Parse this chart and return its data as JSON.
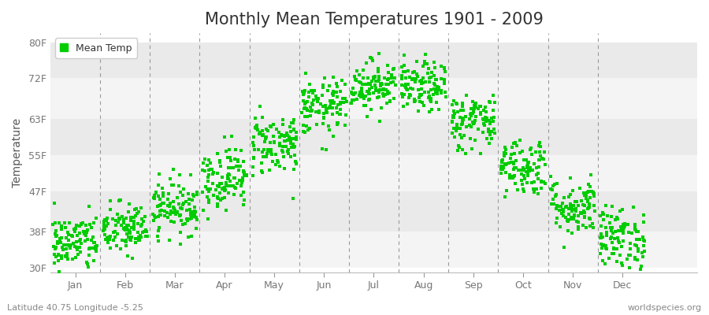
{
  "title": "Monthly Mean Temperatures 1901 - 2009",
  "ylabel": "Temperature",
  "xlabel_bottom_left": "Latitude 40.75 Longitude -5.25",
  "xlabel_bottom_right": "worldspecies.org",
  "legend_label": "Mean Temp",
  "dot_color": "#00cc00",
  "background_color": "#ffffff",
  "plot_bg_color": "#ffffff",
  "band_color_odd": "#f0f0f0",
  "band_color_even": "#e8e8e8",
  "ytick_labels": [
    "30F",
    "38F",
    "47F",
    "55F",
    "63F",
    "72F",
    "80F"
  ],
  "ytick_values": [
    30,
    38,
    47,
    55,
    63,
    72,
    80
  ],
  "ylim": [
    29,
    82
  ],
  "xlim": [
    -0.5,
    12.5
  ],
  "month_names": [
    "Jan",
    "Feb",
    "Mar",
    "Apr",
    "May",
    "Jun",
    "Jul",
    "Aug",
    "Sep",
    "Oct",
    "Nov",
    "Dec"
  ],
  "month_centers": [
    0,
    1,
    2,
    3,
    4,
    5,
    6,
    7,
    8,
    9,
    10,
    11
  ],
  "month_boundaries": [
    0.5,
    1.5,
    2.5,
    3.5,
    4.5,
    5.5,
    6.5,
    7.5,
    8.5,
    9.5,
    10.5
  ],
  "seed": 42,
  "n_years": 109,
  "mean_temps_F": [
    35.5,
    38.5,
    43.5,
    50.0,
    57.5,
    65.5,
    70.5,
    70.0,
    62.5,
    52.5,
    43.5,
    36.5
  ],
  "std_temps_F": [
    3.2,
    3.0,
    3.0,
    3.5,
    3.5,
    3.2,
    2.8,
    2.8,
    3.2,
    3.2,
    3.2,
    3.5
  ],
  "title_fontsize": 15,
  "axis_label_fontsize": 10,
  "tick_fontsize": 9,
  "legend_fontsize": 9,
  "dot_size": 6
}
